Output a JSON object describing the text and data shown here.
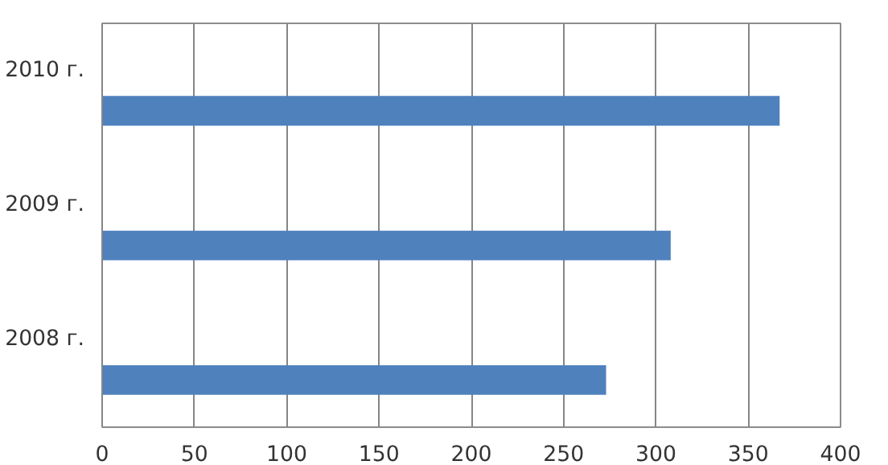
{
  "chart_data": {
    "type": "bar",
    "orientation": "horizontal",
    "categories": [
      "2010 г.",
      "2009 г.",
      "2008 г."
    ],
    "values": [
      367,
      308,
      273
    ],
    "color": "#4f81bd",
    "xlim": [
      0,
      400
    ],
    "xticks": [
      0,
      50,
      100,
      150,
      200,
      250,
      300,
      350,
      400
    ],
    "grid": "x"
  }
}
